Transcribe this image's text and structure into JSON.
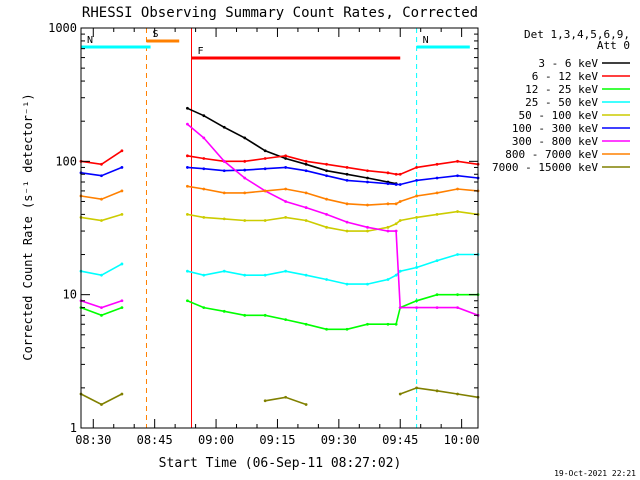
{
  "chart_data": {
    "type": "line",
    "title": "RHESSI Observing Summary Count Rates, Corrected",
    "xlabel": "Start Time (06-Sep-11 08:27:02)",
    "ylabel": "Corrected Count Rate (s⁻¹ detector⁻¹)",
    "yscale": "log",
    "ylim": [
      1,
      1000
    ],
    "xlim": [
      "08:27",
      "10:04"
    ],
    "x_ticks": [
      "08:30",
      "08:45",
      "09:00",
      "09:15",
      "09:30",
      "09:45",
      "10:00"
    ],
    "y_ticks": [
      "1",
      "10",
      "100",
      "1000"
    ],
    "legend_header": [
      "Det 1,3,4,5,6,9,",
      "Att 0"
    ],
    "legend_placement": "right",
    "x_minutes": [
      0,
      5,
      10,
      12,
      13,
      26,
      30,
      35,
      40,
      45,
      50,
      55,
      60,
      65,
      70,
      75,
      77,
      78,
      82,
      87,
      92,
      97
    ],
    "series": [
      {
        "name": "3 - 6 keV",
        "color": "#000000",
        "values": [
          null,
          null,
          null,
          null,
          null,
          250,
          220,
          180,
          150,
          120,
          105,
          95,
          85,
          80,
          75,
          70,
          68,
          null,
          null,
          null,
          null,
          null
        ]
      },
      {
        "name": "6 - 12 keV",
        "color": "#ff0000",
        "values": [
          100,
          95,
          120,
          null,
          null,
          110,
          105,
          100,
          100,
          105,
          110,
          100,
          95,
          90,
          85,
          82,
          80,
          80,
          90,
          95,
          100,
          95
        ]
      },
      {
        "name": "12 - 25 keV",
        "color": "#00ff00",
        "values": [
          8,
          7,
          8,
          null,
          null,
          9,
          8,
          7.5,
          7,
          7,
          6.5,
          6,
          5.5,
          5.5,
          6,
          6,
          6,
          8,
          9,
          10,
          10,
          10
        ]
      },
      {
        "name": "25 - 50 keV",
        "color": "#00ffff",
        "values": [
          15,
          14,
          17,
          null,
          null,
          15,
          14,
          15,
          14,
          14,
          15,
          14,
          13,
          12,
          12,
          13,
          14,
          15,
          16,
          18,
          20,
          20
        ]
      },
      {
        "name": "50 - 100 keV",
        "color": "#cccc00",
        "values": [
          38,
          36,
          40,
          null,
          null,
          40,
          38,
          37,
          36,
          36,
          38,
          36,
          32,
          30,
          30,
          32,
          34,
          36,
          38,
          40,
          42,
          40
        ]
      },
      {
        "name": "100 - 300 keV",
        "color": "#0000ff",
        "values": [
          82,
          78,
          90,
          null,
          null,
          90,
          88,
          85,
          86,
          88,
          90,
          85,
          78,
          72,
          70,
          68,
          67,
          67,
          72,
          75,
          78,
          75
        ]
      },
      {
        "name": "300 - 800 keV",
        "color": "#ff00ff",
        "values": [
          9,
          8,
          9,
          null,
          null,
          190,
          150,
          100,
          75,
          60,
          50,
          45,
          40,
          35,
          32,
          30,
          30,
          8,
          8,
          8,
          8,
          7
        ]
      },
      {
        "name": "800 - 7000 keV",
        "color": "#ff8000",
        "values": [
          55,
          52,
          60,
          null,
          null,
          65,
          62,
          58,
          58,
          60,
          62,
          58,
          52,
          48,
          47,
          48,
          48,
          50,
          55,
          58,
          62,
          60
        ]
      },
      {
        "name": "7000 - 15000 keV",
        "color": "#808000",
        "values": [
          1.8,
          1.5,
          1.8,
          null,
          null,
          null,
          null,
          null,
          null,
          1.6,
          1.7,
          1.5,
          null,
          null,
          null,
          null,
          null,
          1.8,
          2.0,
          1.9,
          1.8,
          1.7
        ]
      }
    ],
    "flags": [
      {
        "label": "S",
        "color": "#ff8000",
        "start": "08:43",
        "end": "08:51"
      },
      {
        "label": "N",
        "color": "#00ffff",
        "start": "08:27",
        "end": "08:44"
      },
      {
        "label": "N",
        "color": "#00ffff",
        "start": "09:49",
        "end": "10:02"
      },
      {
        "label": "F",
        "color": "#ff0000",
        "start": "08:54",
        "end": "09:45"
      }
    ],
    "footer_date": "19-Oct-2021 22:21"
  }
}
